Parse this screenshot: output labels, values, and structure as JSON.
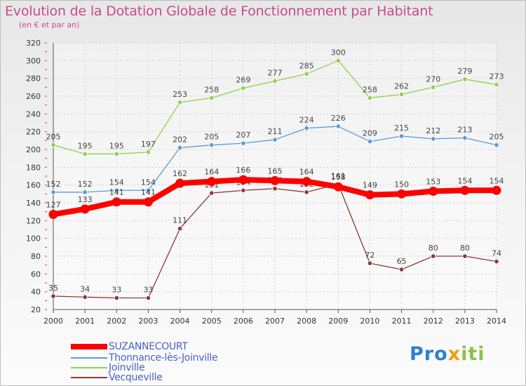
{
  "title": "Evolution de la Dotation Globale de Fonctionnement par Habitant",
  "subtitle": "(en € et par an)",
  "logo": {
    "p1": "Pro",
    "p2": "x",
    "p3": "iti"
  },
  "chart_data": {
    "type": "line",
    "title": "Evolution de la Dotation Globale de Fonctionnement par Habitant",
    "ylabel": "(en € et par an)",
    "xlabel": "",
    "ylim": [
      20,
      320
    ],
    "yticks": [
      20,
      40,
      60,
      80,
      100,
      120,
      140,
      160,
      180,
      200,
      220,
      240,
      260,
      280,
      300,
      320
    ],
    "grid": true,
    "legend_position": "bottom-left",
    "x": [
      "2000",
      "2001",
      "2002",
      "2003",
      "2004",
      "2005",
      "2006",
      "2007",
      "2008",
      "2009",
      "2010",
      "2011",
      "2012",
      "2013",
      "2014"
    ],
    "series": [
      {
        "name": "Joinville",
        "color": "#8fd14f",
        "values": [
          205,
          195,
          195,
          197,
          253,
          258,
          269,
          277,
          285,
          300,
          258,
          262,
          270,
          279,
          273
        ]
      },
      {
        "name": "Thonnance-lès-Joinville",
        "color": "#5b9bd5",
        "values": [
          152,
          152,
          154,
          154,
          202,
          205,
          207,
          211,
          224,
          226,
          209,
          215,
          212,
          213,
          205
        ]
      },
      {
        "name": "Vecqueville",
        "color": "#8b3a3a",
        "values": [
          35,
          34,
          33,
          33,
          111,
          151,
          154,
          156,
          152,
          161,
          72,
          65,
          80,
          80,
          74
        ]
      },
      {
        "name": "SUZANNECOURT",
        "color": "#ff0000",
        "values": [
          127,
          133,
          141,
          141,
          162,
          164,
          166,
          165,
          164,
          158,
          149,
          150,
          153,
          154,
          154
        ]
      }
    ],
    "legend_order": [
      "SUZANNECOURT",
      "Thonnance-lès-Joinville",
      "Joinville",
      "Vecqueville"
    ]
  }
}
